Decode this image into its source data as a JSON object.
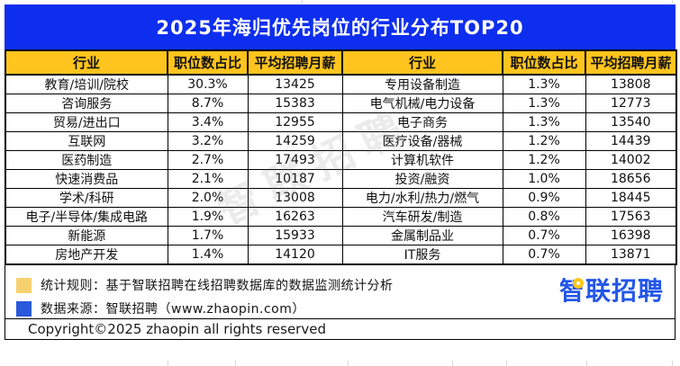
{
  "title": "2025年海归优先岗位的行业分布TOP20",
  "table": {
    "headers": [
      "行业",
      "职位数占比",
      "平均招聘月薪"
    ]
  },
  "chart_data": {
    "type": "table",
    "title": "2025年海归优先岗位的行业分布TOP20",
    "columns": [
      "行业",
      "职位数占比",
      "平均招聘月薪"
    ],
    "layout": "two side-by-side tables, ranks 1-10 left and 11-20 right",
    "entries": [
      {
        "rank": 1,
        "industry": "教育/培训/院校",
        "share_pct": 30.3,
        "avg_salary": 13425
      },
      {
        "rank": 2,
        "industry": "咨询服务",
        "share_pct": 8.7,
        "avg_salary": 15383
      },
      {
        "rank": 3,
        "industry": "贸易/进出口",
        "share_pct": 3.4,
        "avg_salary": 12955
      },
      {
        "rank": 4,
        "industry": "互联网",
        "share_pct": 3.2,
        "avg_salary": 14259
      },
      {
        "rank": 5,
        "industry": "医药制造",
        "share_pct": 2.7,
        "avg_salary": 17493
      },
      {
        "rank": 6,
        "industry": "快速消费品",
        "share_pct": 2.1,
        "avg_salary": 10187
      },
      {
        "rank": 7,
        "industry": "学术/科研",
        "share_pct": 2.0,
        "avg_salary": 13008
      },
      {
        "rank": 8,
        "industry": "电子/半导体/集成电路",
        "share_pct": 1.9,
        "avg_salary": 16263
      },
      {
        "rank": 9,
        "industry": "新能源",
        "share_pct": 1.7,
        "avg_salary": 15933
      },
      {
        "rank": 10,
        "industry": "房地产开发",
        "share_pct": 1.4,
        "avg_salary": 14120
      },
      {
        "rank": 11,
        "industry": "专用设备制造",
        "share_pct": 1.3,
        "avg_salary": 13808
      },
      {
        "rank": 12,
        "industry": "电气机械/电力设备",
        "share_pct": 1.3,
        "avg_salary": 12773
      },
      {
        "rank": 13,
        "industry": "电子商务",
        "share_pct": 1.3,
        "avg_salary": 13540
      },
      {
        "rank": 14,
        "industry": "医疗设备/器械",
        "share_pct": 1.2,
        "avg_salary": 14439
      },
      {
        "rank": 15,
        "industry": "计算机软件",
        "share_pct": 1.2,
        "avg_salary": 14002
      },
      {
        "rank": 16,
        "industry": "投资/融资",
        "share_pct": 1.0,
        "avg_salary": 18656
      },
      {
        "rank": 17,
        "industry": "电力/水利/热力/燃气",
        "share_pct": 0.9,
        "avg_salary": 18445
      },
      {
        "rank": 18,
        "industry": "汽车研发/制造",
        "share_pct": 0.8,
        "avg_salary": 17563
      },
      {
        "rank": 19,
        "industry": "金属制品业",
        "share_pct": 0.7,
        "avg_salary": 16398
      },
      {
        "rank": 20,
        "industry": "IT服务",
        "share_pct": 0.7,
        "avg_salary": 13871
      }
    ]
  },
  "footer": {
    "note_statistics": "统计规则：基于智联招聘在线招聘数据库的数据监测统计分析",
    "note_source": "数据来源：智联招聘（www.zhaopin.com）",
    "copyright": "Copyright©2025 zhaopin all rights reserved",
    "logo_text": "智联招聘"
  },
  "watermark_text": "智联招聘",
  "colors": {
    "banner_blue": "#0E2EEF",
    "header_yellow": "#FFC41D",
    "legend_yellow": "#F7D16F",
    "legend_blue": "#2A58DB",
    "logo_blue": "#2356E8",
    "border_black": "#000000"
  }
}
